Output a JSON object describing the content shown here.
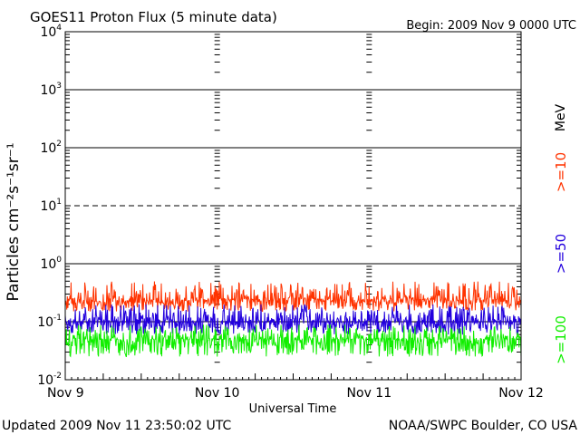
{
  "chart_data": {
    "type": "line",
    "title": "GOES11 Proton Flux (5 minute data)",
    "begin": "Begin: 2009 Nov 9 0000 UTC",
    "xlabel": "Universal Time",
    "ylabel": "Particles cm⁻²s⁻¹sr⁻¹",
    "updated": "Updated 2009 Nov 11 23:50:02 UTC",
    "credit": "NOAA/SWPC Boulder, CO USA",
    "units_label": "MeV",
    "y_scale": "log",
    "ylim": [
      0.01,
      10000
    ],
    "y_tick_labels": [
      {
        "base": "10",
        "exp": "4",
        "value": 10000
      },
      {
        "base": "10",
        "exp": "3",
        "value": 1000
      },
      {
        "base": "10",
        "exp": "2",
        "value": 100
      },
      {
        "base": "10",
        "exp": "1",
        "value": 10
      },
      {
        "base": "10",
        "exp": "0",
        "value": 1
      },
      {
        "base": "10",
        "exp": "-1",
        "value": 0.1
      },
      {
        "base": "10",
        "exp": "-2",
        "value": 0.01
      }
    ],
    "x_ticks": [
      "Nov 9",
      "Nov 10",
      "Nov 11",
      "Nov 12"
    ],
    "xlim_days": [
      0,
      3
    ],
    "threshold_lines": [
      {
        "value": 10,
        "style": "dashed"
      }
    ],
    "series": [
      {
        "name": ">=10",
        "color": "#ff3300",
        "x_days": [
          0,
          0.25,
          0.5,
          0.75,
          1.0,
          1.25,
          1.5,
          1.75,
          2.0,
          2.25,
          2.5,
          2.75,
          3.0
        ],
        "values": [
          0.25,
          0.22,
          0.24,
          0.23,
          0.25,
          0.24,
          0.26,
          0.23,
          0.24,
          0.25,
          0.23,
          0.24,
          0.25
        ],
        "min": 0.15,
        "max": 0.5
      },
      {
        "name": ">=50",
        "color": "#2200dd",
        "x_days": [
          0,
          0.25,
          0.5,
          0.75,
          1.0,
          1.25,
          1.5,
          1.75,
          2.0,
          2.25,
          2.5,
          2.75,
          3.0
        ],
        "values": [
          0.1,
          0.1,
          0.11,
          0.1,
          0.1,
          0.1,
          0.11,
          0.1,
          0.1,
          0.1,
          0.1,
          0.1,
          0.1
        ],
        "min": 0.06,
        "max": 0.2
      },
      {
        "name": ">=100",
        "color": "#11ee00",
        "x_days": [
          0,
          0.25,
          0.5,
          0.75,
          1.0,
          1.25,
          1.5,
          1.75,
          2.0,
          2.25,
          2.5,
          2.75,
          3.0
        ],
        "values": [
          0.05,
          0.05,
          0.05,
          0.05,
          0.05,
          0.05,
          0.05,
          0.05,
          0.05,
          0.05,
          0.05,
          0.05,
          0.05
        ],
        "min": 0.025,
        "max": 0.09
      }
    ],
    "grid": true,
    "legend_placement": "right"
  }
}
